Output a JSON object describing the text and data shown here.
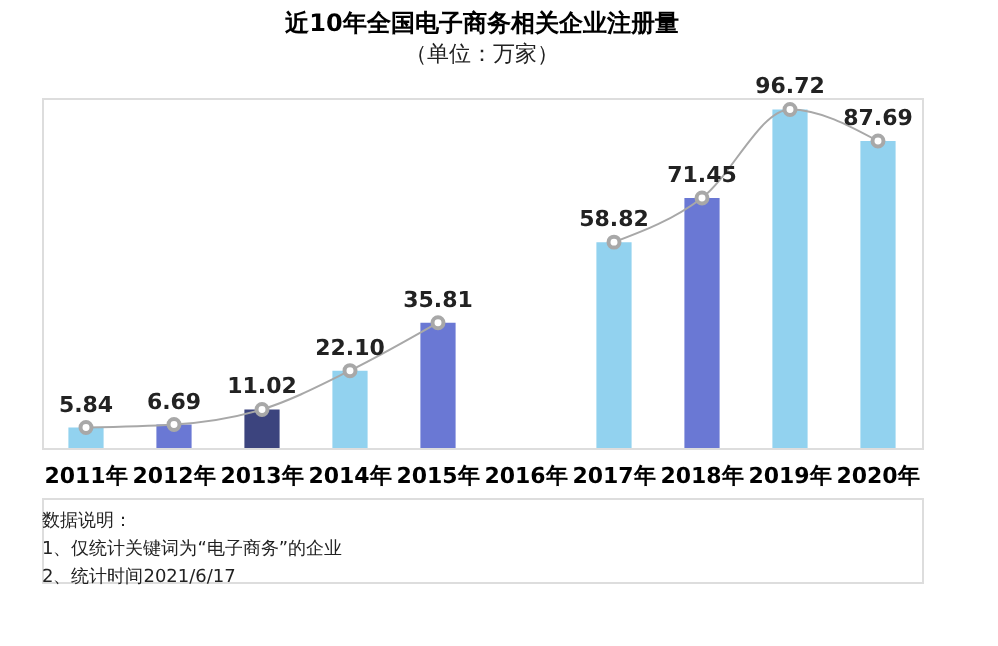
{
  "chart_data": {
    "type": "bar",
    "title": "近10年全国电子商务相关企业注册量",
    "subtitle": "（单位：万家）",
    "categories": [
      "2011年",
      "2012年",
      "2013年",
      "2014年",
      "2015年",
      "2016年",
      "2017年",
      "2018年",
      "2019年",
      "2020年"
    ],
    "series": [
      {
        "value_labels": [
          "5.84",
          "6.69",
          "11.02",
          "22.10",
          "35.81",
          null,
          "58.82",
          "71.45",
          "96.72",
          "87.69"
        ],
        "colors": [
          "#92d2ef",
          "#6a78d4",
          "#3c447e",
          "#92d2ef",
          "#6a78d4",
          "#3c447e",
          "#92d2ef",
          "#6a78d4",
          "#92d2ef",
          "#92d2ef"
        ],
        "values": [
          5.84,
          6.69,
          11.02,
          22.1,
          35.81,
          null,
          58.82,
          71.45,
          96.72,
          87.69
        ]
      },
      {
        "type": "line",
        "color": "#a8a8a8",
        "marker": "circle",
        "values": [
          5.84,
          6.69,
          11.02,
          22.1,
          35.81,
          null,
          58.82,
          71.45,
          96.72,
          87.69
        ]
      }
    ],
    "grid": false,
    "annotations": [
      "数据说明：",
      "1、仅统计关键词为“电子商务”的企业",
      "2、统计时间2021/6/17"
    ]
  }
}
